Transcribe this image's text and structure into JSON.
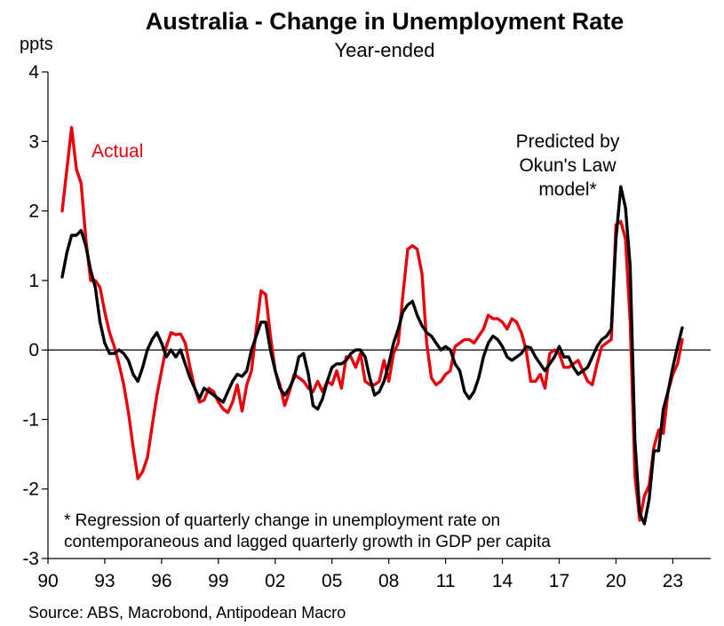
{
  "chart_data": {
    "type": "line",
    "title": "Australia - Change in Unemployment Rate",
    "subtitle": "Year-ended",
    "ylabel": "ppts",
    "ylim": [
      -3,
      4
    ],
    "yticks": [
      4,
      3,
      2,
      1,
      0,
      -1,
      -2,
      -3
    ],
    "xlim": [
      1990,
      2025
    ],
    "xticks": [
      {
        "value": 1990,
        "label": "90"
      },
      {
        "value": 1993,
        "label": "93"
      },
      {
        "value": 1996,
        "label": "96"
      },
      {
        "value": 1999,
        "label": "99"
      },
      {
        "value": 2002,
        "label": "02"
      },
      {
        "value": 2005,
        "label": "05"
      },
      {
        "value": 2008,
        "label": "08"
      },
      {
        "value": 2011,
        "label": "11"
      },
      {
        "value": 2014,
        "label": "14"
      },
      {
        "value": 2017,
        "label": "17"
      },
      {
        "value": 2020,
        "label": "20"
      },
      {
        "value": 2023,
        "label": "23"
      }
    ],
    "grid": false,
    "series": [
      {
        "name": "Actual",
        "color": "#e8000b",
        "points": [
          [
            1990.75,
            2.0
          ],
          [
            1991.0,
            2.6
          ],
          [
            1991.25,
            3.2
          ],
          [
            1991.5,
            2.6
          ],
          [
            1991.75,
            2.4
          ],
          [
            1992.0,
            1.6
          ],
          [
            1992.25,
            1.0
          ],
          [
            1992.5,
            1.0
          ],
          [
            1992.75,
            0.9
          ],
          [
            1993.0,
            0.55
          ],
          [
            1993.25,
            0.25
          ],
          [
            1993.5,
            0.05
          ],
          [
            1993.75,
            -0.2
          ],
          [
            1994.0,
            -0.5
          ],
          [
            1994.25,
            -0.9
          ],
          [
            1994.5,
            -1.4
          ],
          [
            1994.75,
            -1.85
          ],
          [
            1995.0,
            -1.75
          ],
          [
            1995.25,
            -1.55
          ],
          [
            1995.5,
            -1.1
          ],
          [
            1995.75,
            -0.65
          ],
          [
            1996.0,
            -0.3
          ],
          [
            1996.25,
            0.05
          ],
          [
            1996.5,
            0.25
          ],
          [
            1996.75,
            0.22
          ],
          [
            1997.0,
            0.23
          ],
          [
            1997.25,
            0.1
          ],
          [
            1997.5,
            -0.25
          ],
          [
            1997.75,
            -0.55
          ],
          [
            1998.0,
            -0.75
          ],
          [
            1998.25,
            -0.72
          ],
          [
            1998.5,
            -0.55
          ],
          [
            1998.75,
            -0.6
          ],
          [
            1999.0,
            -0.75
          ],
          [
            1999.25,
            -0.85
          ],
          [
            1999.5,
            -0.9
          ],
          [
            1999.75,
            -0.75
          ],
          [
            2000.0,
            -0.5
          ],
          [
            2000.25,
            -0.88
          ],
          [
            2000.5,
            -0.5
          ],
          [
            2000.75,
            -0.3
          ],
          [
            2001.0,
            0.3
          ],
          [
            2001.25,
            0.85
          ],
          [
            2001.5,
            0.8
          ],
          [
            2001.75,
            0.2
          ],
          [
            2002.0,
            -0.3
          ],
          [
            2002.25,
            -0.5
          ],
          [
            2002.5,
            -0.8
          ],
          [
            2002.75,
            -0.6
          ],
          [
            2003.0,
            -0.35
          ],
          [
            2003.25,
            -0.4
          ],
          [
            2003.5,
            -0.45
          ],
          [
            2003.75,
            -0.55
          ],
          [
            2004.0,
            -0.6
          ],
          [
            2004.25,
            -0.45
          ],
          [
            2004.5,
            -0.6
          ],
          [
            2004.75,
            -0.45
          ],
          [
            2005.0,
            -0.5
          ],
          [
            2005.25,
            -0.3
          ],
          [
            2005.5,
            -0.55
          ],
          [
            2005.75,
            -0.1
          ],
          [
            2006.0,
            -0.1
          ],
          [
            2006.25,
            -0.25
          ],
          [
            2006.5,
            -0.05
          ],
          [
            2006.75,
            -0.45
          ],
          [
            2007.0,
            -0.5
          ],
          [
            2007.25,
            -0.5
          ],
          [
            2007.5,
            -0.45
          ],
          [
            2007.75,
            -0.15
          ],
          [
            2008.0,
            -0.45
          ],
          [
            2008.25,
            -0.05
          ],
          [
            2008.5,
            0.1
          ],
          [
            2008.75,
            0.8
          ],
          [
            2009.0,
            1.45
          ],
          [
            2009.25,
            1.5
          ],
          [
            2009.5,
            1.45
          ],
          [
            2009.75,
            1.1
          ],
          [
            2010.0,
            0.1
          ],
          [
            2010.25,
            -0.4
          ],
          [
            2010.5,
            -0.5
          ],
          [
            2010.75,
            -0.45
          ],
          [
            2011.0,
            -0.35
          ],
          [
            2011.25,
            -0.3
          ],
          [
            2011.5,
            0.05
          ],
          [
            2011.75,
            0.1
          ],
          [
            2012.0,
            0.15
          ],
          [
            2012.25,
            0.15
          ],
          [
            2012.5,
            0.1
          ],
          [
            2012.75,
            0.2
          ],
          [
            2013.0,
            0.3
          ],
          [
            2013.25,
            0.5
          ],
          [
            2013.5,
            0.45
          ],
          [
            2013.75,
            0.45
          ],
          [
            2014.0,
            0.4
          ],
          [
            2014.25,
            0.3
          ],
          [
            2014.5,
            0.45
          ],
          [
            2014.75,
            0.4
          ],
          [
            2015.0,
            0.25
          ],
          [
            2015.25,
            0.0
          ],
          [
            2015.5,
            -0.45
          ],
          [
            2015.75,
            -0.45
          ],
          [
            2016.0,
            -0.35
          ],
          [
            2016.25,
            -0.55
          ],
          [
            2016.5,
            -0.05
          ],
          [
            2016.75,
            0.0
          ],
          [
            2017.0,
            -0.05
          ],
          [
            2017.25,
            -0.25
          ],
          [
            2017.5,
            -0.25
          ],
          [
            2017.75,
            -0.2
          ],
          [
            2018.0,
            -0.15
          ],
          [
            2018.25,
            -0.3
          ],
          [
            2018.5,
            -0.45
          ],
          [
            2018.75,
            -0.5
          ],
          [
            2019.0,
            -0.2
          ],
          [
            2019.25,
            0.05
          ],
          [
            2019.5,
            0.1
          ],
          [
            2019.75,
            0.15
          ],
          [
            2020.0,
            1.8
          ],
          [
            2020.25,
            1.85
          ],
          [
            2020.5,
            1.6
          ],
          [
            2020.75,
            0.4
          ],
          [
            2021.0,
            -1.8
          ],
          [
            2021.25,
            -2.45
          ],
          [
            2021.5,
            -2.1
          ],
          [
            2021.75,
            -1.95
          ],
          [
            2022.0,
            -1.4
          ],
          [
            2022.25,
            -1.15
          ],
          [
            2022.5,
            -1.2
          ],
          [
            2022.75,
            -0.6
          ],
          [
            2023.0,
            -0.35
          ],
          [
            2023.25,
            -0.2
          ],
          [
            2023.5,
            0.15
          ]
        ]
      },
      {
        "name": "Predicted by Okun's Law model*",
        "color": "#000000",
        "points": [
          [
            1990.75,
            1.05
          ],
          [
            1991.0,
            1.4
          ],
          [
            1991.25,
            1.65
          ],
          [
            1991.5,
            1.65
          ],
          [
            1991.75,
            1.72
          ],
          [
            1992.0,
            1.5
          ],
          [
            1992.25,
            1.15
          ],
          [
            1992.5,
            0.9
          ],
          [
            1992.75,
            0.4
          ],
          [
            1993.0,
            0.1
          ],
          [
            1993.25,
            -0.05
          ],
          [
            1993.5,
            -0.05
          ],
          [
            1993.75,
            0.0
          ],
          [
            1994.0,
            -0.05
          ],
          [
            1994.25,
            -0.15
          ],
          [
            1994.5,
            -0.35
          ],
          [
            1994.75,
            -0.45
          ],
          [
            1995.0,
            -0.25
          ],
          [
            1995.25,
            0.0
          ],
          [
            1995.5,
            0.15
          ],
          [
            1995.75,
            0.25
          ],
          [
            1996.0,
            0.1
          ],
          [
            1996.25,
            -0.1
          ],
          [
            1996.5,
            0.0
          ],
          [
            1996.75,
            -0.1
          ],
          [
            1997.0,
            0.0
          ],
          [
            1997.25,
            -0.2
          ],
          [
            1997.5,
            -0.4
          ],
          [
            1997.75,
            -0.55
          ],
          [
            1998.0,
            -0.7
          ],
          [
            1998.25,
            -0.55
          ],
          [
            1998.5,
            -0.6
          ],
          [
            1998.75,
            -0.65
          ],
          [
            1999.0,
            -0.7
          ],
          [
            1999.25,
            -0.75
          ],
          [
            1999.5,
            -0.6
          ],
          [
            1999.75,
            -0.45
          ],
          [
            2000.0,
            -0.35
          ],
          [
            2000.25,
            -0.38
          ],
          [
            2000.5,
            -0.3
          ],
          [
            2000.75,
            0.0
          ],
          [
            2001.0,
            0.2
          ],
          [
            2001.25,
            0.4
          ],
          [
            2001.5,
            0.4
          ],
          [
            2001.75,
            0.0
          ],
          [
            2002.0,
            -0.3
          ],
          [
            2002.25,
            -0.55
          ],
          [
            2002.5,
            -0.65
          ],
          [
            2002.75,
            -0.55
          ],
          [
            2003.0,
            -0.4
          ],
          [
            2003.25,
            -0.1
          ],
          [
            2003.5,
            -0.05
          ],
          [
            2003.75,
            -0.35
          ],
          [
            2004.0,
            -0.8
          ],
          [
            2004.25,
            -0.85
          ],
          [
            2004.5,
            -0.7
          ],
          [
            2004.75,
            -0.45
          ],
          [
            2005.0,
            -0.25
          ],
          [
            2005.25,
            -0.2
          ],
          [
            2005.5,
            -0.2
          ],
          [
            2005.75,
            -0.15
          ],
          [
            2006.0,
            -0.05
          ],
          [
            2006.25,
            0.0
          ],
          [
            2006.5,
            0.0
          ],
          [
            2006.75,
            -0.1
          ],
          [
            2007.0,
            -0.4
          ],
          [
            2007.25,
            -0.65
          ],
          [
            2007.5,
            -0.6
          ],
          [
            2007.75,
            -0.45
          ],
          [
            2008.0,
            -0.2
          ],
          [
            2008.25,
            0.1
          ],
          [
            2008.5,
            0.3
          ],
          [
            2008.75,
            0.55
          ],
          [
            2009.0,
            0.65
          ],
          [
            2009.25,
            0.7
          ],
          [
            2009.5,
            0.5
          ],
          [
            2009.75,
            0.35
          ],
          [
            2010.0,
            0.25
          ],
          [
            2010.25,
            0.2
          ],
          [
            2010.5,
            0.1
          ],
          [
            2010.75,
            0.0
          ],
          [
            2011.0,
            0.05
          ],
          [
            2011.25,
            0.0
          ],
          [
            2011.5,
            -0.2
          ],
          [
            2011.75,
            -0.3
          ],
          [
            2012.0,
            -0.6
          ],
          [
            2012.25,
            -0.7
          ],
          [
            2012.5,
            -0.6
          ],
          [
            2012.75,
            -0.4
          ],
          [
            2013.0,
            -0.1
          ],
          [
            2013.25,
            0.1
          ],
          [
            2013.5,
            0.2
          ],
          [
            2013.75,
            0.15
          ],
          [
            2014.0,
            0.05
          ],
          [
            2014.25,
            -0.1
          ],
          [
            2014.5,
            -0.15
          ],
          [
            2014.75,
            -0.1
          ],
          [
            2015.0,
            -0.05
          ],
          [
            2015.25,
            0.05
          ],
          [
            2015.5,
            0.03
          ],
          [
            2015.75,
            -0.1
          ],
          [
            2016.0,
            -0.2
          ],
          [
            2016.25,
            -0.3
          ],
          [
            2016.5,
            -0.2
          ],
          [
            2016.75,
            -0.1
          ],
          [
            2017.0,
            0.05
          ],
          [
            2017.25,
            -0.1
          ],
          [
            2017.5,
            -0.1
          ],
          [
            2017.75,
            -0.25
          ],
          [
            2018.0,
            -0.35
          ],
          [
            2018.25,
            -0.3
          ],
          [
            2018.5,
            -0.25
          ],
          [
            2018.75,
            -0.1
          ],
          [
            2019.0,
            0.05
          ],
          [
            2019.25,
            0.15
          ],
          [
            2019.5,
            0.2
          ],
          [
            2019.75,
            0.3
          ],
          [
            2020.0,
            1.6
          ],
          [
            2020.25,
            2.35
          ],
          [
            2020.5,
            2.05
          ],
          [
            2020.75,
            1.2
          ],
          [
            2021.0,
            -1.3
          ],
          [
            2021.25,
            -2.35
          ],
          [
            2021.5,
            -2.5
          ],
          [
            2021.75,
            -2.15
          ],
          [
            2022.0,
            -1.45
          ],
          [
            2022.25,
            -1.45
          ],
          [
            2022.5,
            -0.85
          ],
          [
            2022.75,
            -0.6
          ],
          [
            2023.0,
            -0.25
          ],
          [
            2023.25,
            0.05
          ],
          [
            2023.5,
            0.32
          ]
        ]
      }
    ],
    "annotations": {
      "actual_label": "Actual",
      "predicted_label_lines": [
        "Predicted by",
        "Okun's Law",
        "model*"
      ],
      "footnote_lines": [
        "* Regression of quarterly change in unemployment rate on",
        "contemporaneous and lagged quarterly growth in GDP per capita"
      ]
    },
    "source": "Source: ABS, Macrobond, Antipodean Macro"
  }
}
